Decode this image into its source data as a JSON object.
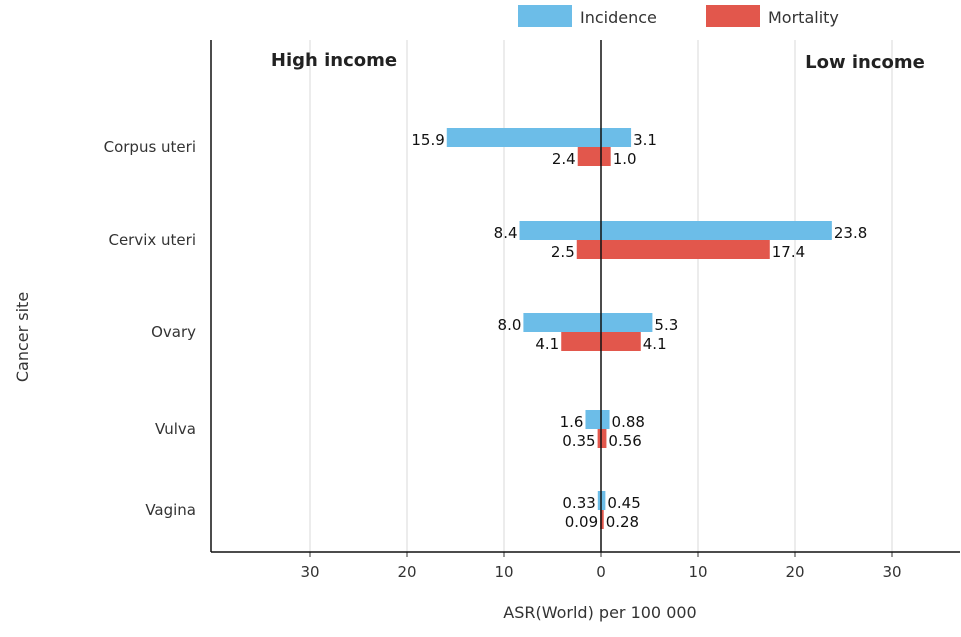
{
  "chart_data": {
    "type": "bar",
    "orientation": "horizontal-diverging",
    "categories": [
      "Corpus uteri",
      "Cervix uteri",
      "Ovary",
      "Vulva",
      "Vagina"
    ],
    "left_panel_label": "High income",
    "right_panel_label": "Low income",
    "xlabel": "ASR(World) per 100 000",
    "ylabel": "Cancer site",
    "xlim": [
      -40,
      40
    ],
    "x_ticks": [
      -30,
      -20,
      -10,
      0,
      10,
      20,
      30
    ],
    "x_tick_labels": [
      "30",
      "20",
      "10",
      "0",
      "10",
      "20",
      "30"
    ],
    "grid": true,
    "legend_position": "top-right",
    "series": [
      {
        "name": "Incidence",
        "color": "#6cbde8",
        "high_income": [
          15.9,
          8.4,
          8.0,
          1.6,
          0.33
        ],
        "low_income": [
          3.1,
          23.8,
          5.3,
          0.88,
          0.45
        ],
        "high_income_labels": [
          "15.9",
          "8.4",
          "8.0",
          "1.6",
          "0.33"
        ],
        "low_income_labels": [
          "3.1",
          "23.8",
          "5.3",
          "0.88",
          "0.45"
        ]
      },
      {
        "name": "Mortality",
        "color": "#e2574c",
        "high_income": [
          2.4,
          2.5,
          4.1,
          0.35,
          0.09
        ],
        "low_income": [
          1.0,
          17.4,
          4.1,
          0.56,
          0.28
        ],
        "high_income_labels": [
          "2.4",
          "2.5",
          "4.1",
          "0.35",
          "0.09"
        ],
        "low_income_labels": [
          "1.0",
          "17.4",
          "4.1",
          "0.56",
          "0.28"
        ]
      }
    ]
  }
}
